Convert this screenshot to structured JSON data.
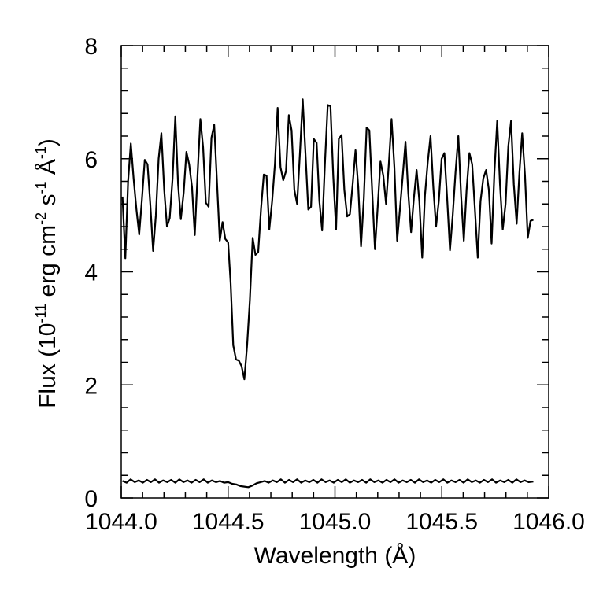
{
  "chart_data": {
    "type": "line",
    "xlabel": "Wavelength (Å)",
    "ylabel": {
      "prefix": "Flux (10",
      "exp1": "-11",
      "part2": " erg cm",
      "exp2": "-2",
      "part3": " s",
      "exp3": "-1",
      "part4": " Å",
      "exp4": "-1",
      "suffix": ")"
    },
    "xlim": [
      1044.0,
      1046.0
    ],
    "ylim": [
      0,
      8
    ],
    "x_ticks": [
      1044.0,
      1044.5,
      1045.0,
      1045.5,
      1046.0
    ],
    "x_tick_labels": [
      "1044.0",
      "1044.5",
      "1045.0",
      "1045.5",
      "1046.0"
    ],
    "y_ticks": [
      0,
      2,
      4,
      6,
      8
    ],
    "y_tick_labels": [
      "0",
      "2",
      "4",
      "6",
      "8"
    ],
    "x_minor_step": 0.1,
    "y_minor_step": 0.4,
    "grid": false,
    "series": [
      {
        "color": "#000000",
        "points": [
          [
            1044.006,
            5.33
          ],
          [
            1044.019,
            4.24
          ],
          [
            1044.032,
            5.6
          ],
          [
            1044.045,
            6.27
          ],
          [
            1044.058,
            5.65
          ],
          [
            1044.071,
            5.1
          ],
          [
            1044.084,
            4.66
          ],
          [
            1044.097,
            5.28
          ],
          [
            1044.11,
            5.98
          ],
          [
            1044.123,
            5.9
          ],
          [
            1044.136,
            5.2
          ],
          [
            1044.149,
            4.37
          ],
          [
            1044.162,
            5.0
          ],
          [
            1044.175,
            6.0
          ],
          [
            1044.188,
            6.45
          ],
          [
            1044.201,
            5.45
          ],
          [
            1044.214,
            4.8
          ],
          [
            1044.227,
            4.95
          ],
          [
            1044.24,
            5.65
          ],
          [
            1044.253,
            6.75
          ],
          [
            1044.266,
            5.55
          ],
          [
            1044.279,
            4.93
          ],
          [
            1044.292,
            5.4
          ],
          [
            1044.305,
            6.12
          ],
          [
            1044.318,
            5.9
          ],
          [
            1044.331,
            5.5
          ],
          [
            1044.344,
            4.65
          ],
          [
            1044.357,
            5.7
          ],
          [
            1044.37,
            6.7
          ],
          [
            1044.383,
            6.2
          ],
          [
            1044.396,
            5.22
          ],
          [
            1044.409,
            5.15
          ],
          [
            1044.422,
            6.37
          ],
          [
            1044.435,
            6.6
          ],
          [
            1044.448,
            5.6
          ],
          [
            1044.461,
            4.55
          ],
          [
            1044.474,
            4.88
          ],
          [
            1044.487,
            4.58
          ],
          [
            1044.5,
            4.52
          ],
          [
            1044.512,
            3.8
          ],
          [
            1044.524,
            2.7
          ],
          [
            1044.537,
            2.45
          ],
          [
            1044.55,
            2.43
          ],
          [
            1044.563,
            2.33
          ],
          [
            1044.576,
            2.1
          ],
          [
            1044.589,
            2.7
          ],
          [
            1044.602,
            3.5
          ],
          [
            1044.615,
            4.6
          ],
          [
            1044.628,
            4.3
          ],
          [
            1044.641,
            4.35
          ],
          [
            1044.654,
            5.12
          ],
          [
            1044.667,
            5.72
          ],
          [
            1044.68,
            5.7
          ],
          [
            1044.693,
            4.75
          ],
          [
            1044.706,
            5.25
          ],
          [
            1044.719,
            5.9
          ],
          [
            1044.732,
            6.9
          ],
          [
            1044.745,
            5.85
          ],
          [
            1044.758,
            5.62
          ],
          [
            1044.771,
            5.78
          ],
          [
            1044.784,
            6.77
          ],
          [
            1044.797,
            6.5
          ],
          [
            1044.81,
            5.45
          ],
          [
            1044.823,
            5.2
          ],
          [
            1044.836,
            6.1
          ],
          [
            1044.849,
            7.05
          ],
          [
            1044.862,
            6.1
          ],
          [
            1044.875,
            5.1
          ],
          [
            1044.888,
            5.15
          ],
          [
            1044.901,
            6.35
          ],
          [
            1044.914,
            6.28
          ],
          [
            1044.927,
            5.25
          ],
          [
            1044.94,
            4.73
          ],
          [
            1044.953,
            5.9
          ],
          [
            1044.966,
            6.95
          ],
          [
            1044.979,
            6.93
          ],
          [
            1044.992,
            5.7
          ],
          [
            1045.005,
            4.75
          ],
          [
            1045.018,
            6.35
          ],
          [
            1045.031,
            6.42
          ],
          [
            1045.044,
            5.45
          ],
          [
            1045.057,
            4.98
          ],
          [
            1045.07,
            5.02
          ],
          [
            1045.083,
            5.55
          ],
          [
            1045.096,
            6.15
          ],
          [
            1045.109,
            5.5
          ],
          [
            1045.122,
            4.45
          ],
          [
            1045.135,
            5.3
          ],
          [
            1045.148,
            6.55
          ],
          [
            1045.161,
            6.5
          ],
          [
            1045.174,
            5.45
          ],
          [
            1045.187,
            4.4
          ],
          [
            1045.2,
            5.15
          ],
          [
            1045.213,
            5.95
          ],
          [
            1045.226,
            5.7
          ],
          [
            1045.239,
            5.2
          ],
          [
            1045.252,
            5.9
          ],
          [
            1045.265,
            6.7
          ],
          [
            1045.278,
            5.85
          ],
          [
            1045.291,
            4.55
          ],
          [
            1045.304,
            5.1
          ],
          [
            1045.317,
            5.7
          ],
          [
            1045.33,
            6.3
          ],
          [
            1045.343,
            5.4
          ],
          [
            1045.356,
            4.7
          ],
          [
            1045.369,
            5.3
          ],
          [
            1045.382,
            5.8
          ],
          [
            1045.395,
            5.25
          ],
          [
            1045.408,
            4.25
          ],
          [
            1045.421,
            5.35
          ],
          [
            1045.434,
            5.93
          ],
          [
            1045.447,
            6.4
          ],
          [
            1045.46,
            5.5
          ],
          [
            1045.473,
            4.8
          ],
          [
            1045.486,
            5.25
          ],
          [
            1045.499,
            6.0
          ],
          [
            1045.512,
            6.1
          ],
          [
            1045.525,
            5.3
          ],
          [
            1045.538,
            4.38
          ],
          [
            1045.551,
            5.0
          ],
          [
            1045.564,
            5.75
          ],
          [
            1045.577,
            6.4
          ],
          [
            1045.59,
            5.35
          ],
          [
            1045.603,
            4.55
          ],
          [
            1045.616,
            5.45
          ],
          [
            1045.629,
            6.1
          ],
          [
            1045.642,
            5.9
          ],
          [
            1045.655,
            5.1
          ],
          [
            1045.668,
            4.25
          ],
          [
            1045.681,
            5.25
          ],
          [
            1045.694,
            5.65
          ],
          [
            1045.707,
            5.8
          ],
          [
            1045.72,
            5.45
          ],
          [
            1045.733,
            4.5
          ],
          [
            1045.746,
            5.75
          ],
          [
            1045.759,
            6.67
          ],
          [
            1045.772,
            5.55
          ],
          [
            1045.785,
            4.75
          ],
          [
            1045.798,
            5.2
          ],
          [
            1045.811,
            6.22
          ],
          [
            1045.824,
            6.67
          ],
          [
            1045.837,
            5.55
          ],
          [
            1045.85,
            4.85
          ],
          [
            1045.863,
            5.75
          ],
          [
            1045.876,
            6.45
          ],
          [
            1045.889,
            5.7
          ],
          [
            1045.902,
            4.6
          ],
          [
            1045.915,
            4.9
          ],
          [
            1045.928,
            4.92
          ]
        ]
      },
      {
        "color": "#000000",
        "points": [
          [
            1044.006,
            0.3
          ],
          [
            1044.025,
            0.27
          ],
          [
            1044.044,
            0.33
          ],
          [
            1044.063,
            0.28
          ],
          [
            1044.082,
            0.31
          ],
          [
            1044.101,
            0.27
          ],
          [
            1044.12,
            0.32
          ],
          [
            1044.139,
            0.28
          ],
          [
            1044.158,
            0.33
          ],
          [
            1044.177,
            0.27
          ],
          [
            1044.196,
            0.31
          ],
          [
            1044.215,
            0.28
          ],
          [
            1044.234,
            0.32
          ],
          [
            1044.253,
            0.27
          ],
          [
            1044.272,
            0.33
          ],
          [
            1044.291,
            0.28
          ],
          [
            1044.31,
            0.31
          ],
          [
            1044.329,
            0.27
          ],
          [
            1044.348,
            0.32
          ],
          [
            1044.367,
            0.28
          ],
          [
            1044.386,
            0.33
          ],
          [
            1044.405,
            0.27
          ],
          [
            1044.424,
            0.31
          ],
          [
            1044.443,
            0.28
          ],
          [
            1044.462,
            0.3
          ],
          [
            1044.481,
            0.27
          ],
          [
            1044.5,
            0.28
          ],
          [
            1044.519,
            0.25
          ],
          [
            1044.538,
            0.24
          ],
          [
            1044.557,
            0.21
          ],
          [
            1044.576,
            0.2
          ],
          [
            1044.595,
            0.19
          ],
          [
            1044.614,
            0.22
          ],
          [
            1044.633,
            0.26
          ],
          [
            1044.652,
            0.28
          ],
          [
            1044.671,
            0.3
          ],
          [
            1044.69,
            0.27
          ],
          [
            1044.709,
            0.31
          ],
          [
            1044.728,
            0.28
          ],
          [
            1044.747,
            0.33
          ],
          [
            1044.766,
            0.27
          ],
          [
            1044.785,
            0.32
          ],
          [
            1044.804,
            0.28
          ],
          [
            1044.823,
            0.33
          ],
          [
            1044.842,
            0.27
          ],
          [
            1044.861,
            0.31
          ],
          [
            1044.88,
            0.28
          ],
          [
            1044.899,
            0.32
          ],
          [
            1044.918,
            0.27
          ],
          [
            1044.937,
            0.33
          ],
          [
            1044.956,
            0.28
          ],
          [
            1044.975,
            0.31
          ],
          [
            1044.994,
            0.27
          ],
          [
            1045.013,
            0.32
          ],
          [
            1045.032,
            0.28
          ],
          [
            1045.051,
            0.33
          ],
          [
            1045.07,
            0.27
          ],
          [
            1045.089,
            0.31
          ],
          [
            1045.108,
            0.28
          ],
          [
            1045.127,
            0.32
          ],
          [
            1045.146,
            0.27
          ],
          [
            1045.165,
            0.33
          ],
          [
            1045.184,
            0.28
          ],
          [
            1045.203,
            0.31
          ],
          [
            1045.222,
            0.27
          ],
          [
            1045.241,
            0.32
          ],
          [
            1045.26,
            0.28
          ],
          [
            1045.279,
            0.33
          ],
          [
            1045.298,
            0.27
          ],
          [
            1045.317,
            0.31
          ],
          [
            1045.336,
            0.28
          ],
          [
            1045.355,
            0.32
          ],
          [
            1045.374,
            0.27
          ],
          [
            1045.393,
            0.33
          ],
          [
            1045.412,
            0.28
          ],
          [
            1045.431,
            0.31
          ],
          [
            1045.45,
            0.27
          ],
          [
            1045.469,
            0.32
          ],
          [
            1045.488,
            0.28
          ],
          [
            1045.507,
            0.33
          ],
          [
            1045.526,
            0.27
          ],
          [
            1045.545,
            0.31
          ],
          [
            1045.564,
            0.28
          ],
          [
            1045.583,
            0.32
          ],
          [
            1045.602,
            0.27
          ],
          [
            1045.621,
            0.33
          ],
          [
            1045.64,
            0.28
          ],
          [
            1045.659,
            0.31
          ],
          [
            1045.678,
            0.27
          ],
          [
            1045.697,
            0.32
          ],
          [
            1045.716,
            0.28
          ],
          [
            1045.735,
            0.33
          ],
          [
            1045.754,
            0.27
          ],
          [
            1045.773,
            0.31
          ],
          [
            1045.792,
            0.28
          ],
          [
            1045.811,
            0.32
          ],
          [
            1045.83,
            0.27
          ],
          [
            1045.849,
            0.33
          ],
          [
            1045.868,
            0.28
          ],
          [
            1045.887,
            0.31
          ],
          [
            1045.906,
            0.28
          ],
          [
            1045.928,
            0.29
          ]
        ]
      }
    ]
  }
}
